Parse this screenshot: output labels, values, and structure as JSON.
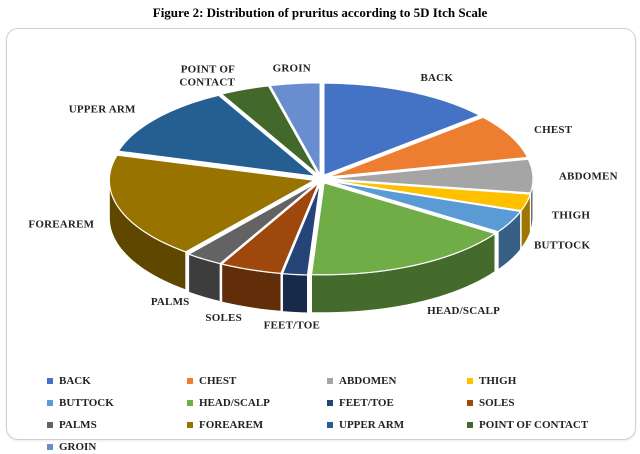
{
  "title": "Figure 2: Distribution of pruritus according to 5D Itch Scale",
  "chart_data": {
    "type": "pie",
    "style": "3d-exploded-pie",
    "title": "Figure 2: Distribution of pruritus according to 5D Itch Scale",
    "legend_position": "bottom",
    "slices": [
      {
        "label": "BACK",
        "value": 14,
        "color": "#4472C4"
      },
      {
        "label": "CHEST",
        "value": 8,
        "color": "#ED7D31"
      },
      {
        "label": "ABDOMEN",
        "value": 6,
        "color": "#A5A5A5"
      },
      {
        "label": "THIGH",
        "value": 3,
        "color": "#FFC000"
      },
      {
        "label": "BUTTOCK",
        "value": 4,
        "color": "#5B9BD5"
      },
      {
        "label": "HEAD/SCALP",
        "value": 17,
        "color": "#70AD47"
      },
      {
        "label": "FEET/TOE",
        "value": 2,
        "color": "#264478"
      },
      {
        "label": "SOLES",
        "value": 5,
        "color": "#9E480E"
      },
      {
        "label": "PALMS",
        "value": 3,
        "color": "#636363"
      },
      {
        "label": "FOREAREM",
        "value": 19,
        "color": "#997300"
      },
      {
        "label": "UPPER ARM",
        "value": 13,
        "color": "#255E91"
      },
      {
        "label": "POINT OF CONTACT",
        "value": 4,
        "color": "#43682B"
      },
      {
        "label": "GROIN",
        "value": 4,
        "color": "#698ED0"
      }
    ]
  }
}
